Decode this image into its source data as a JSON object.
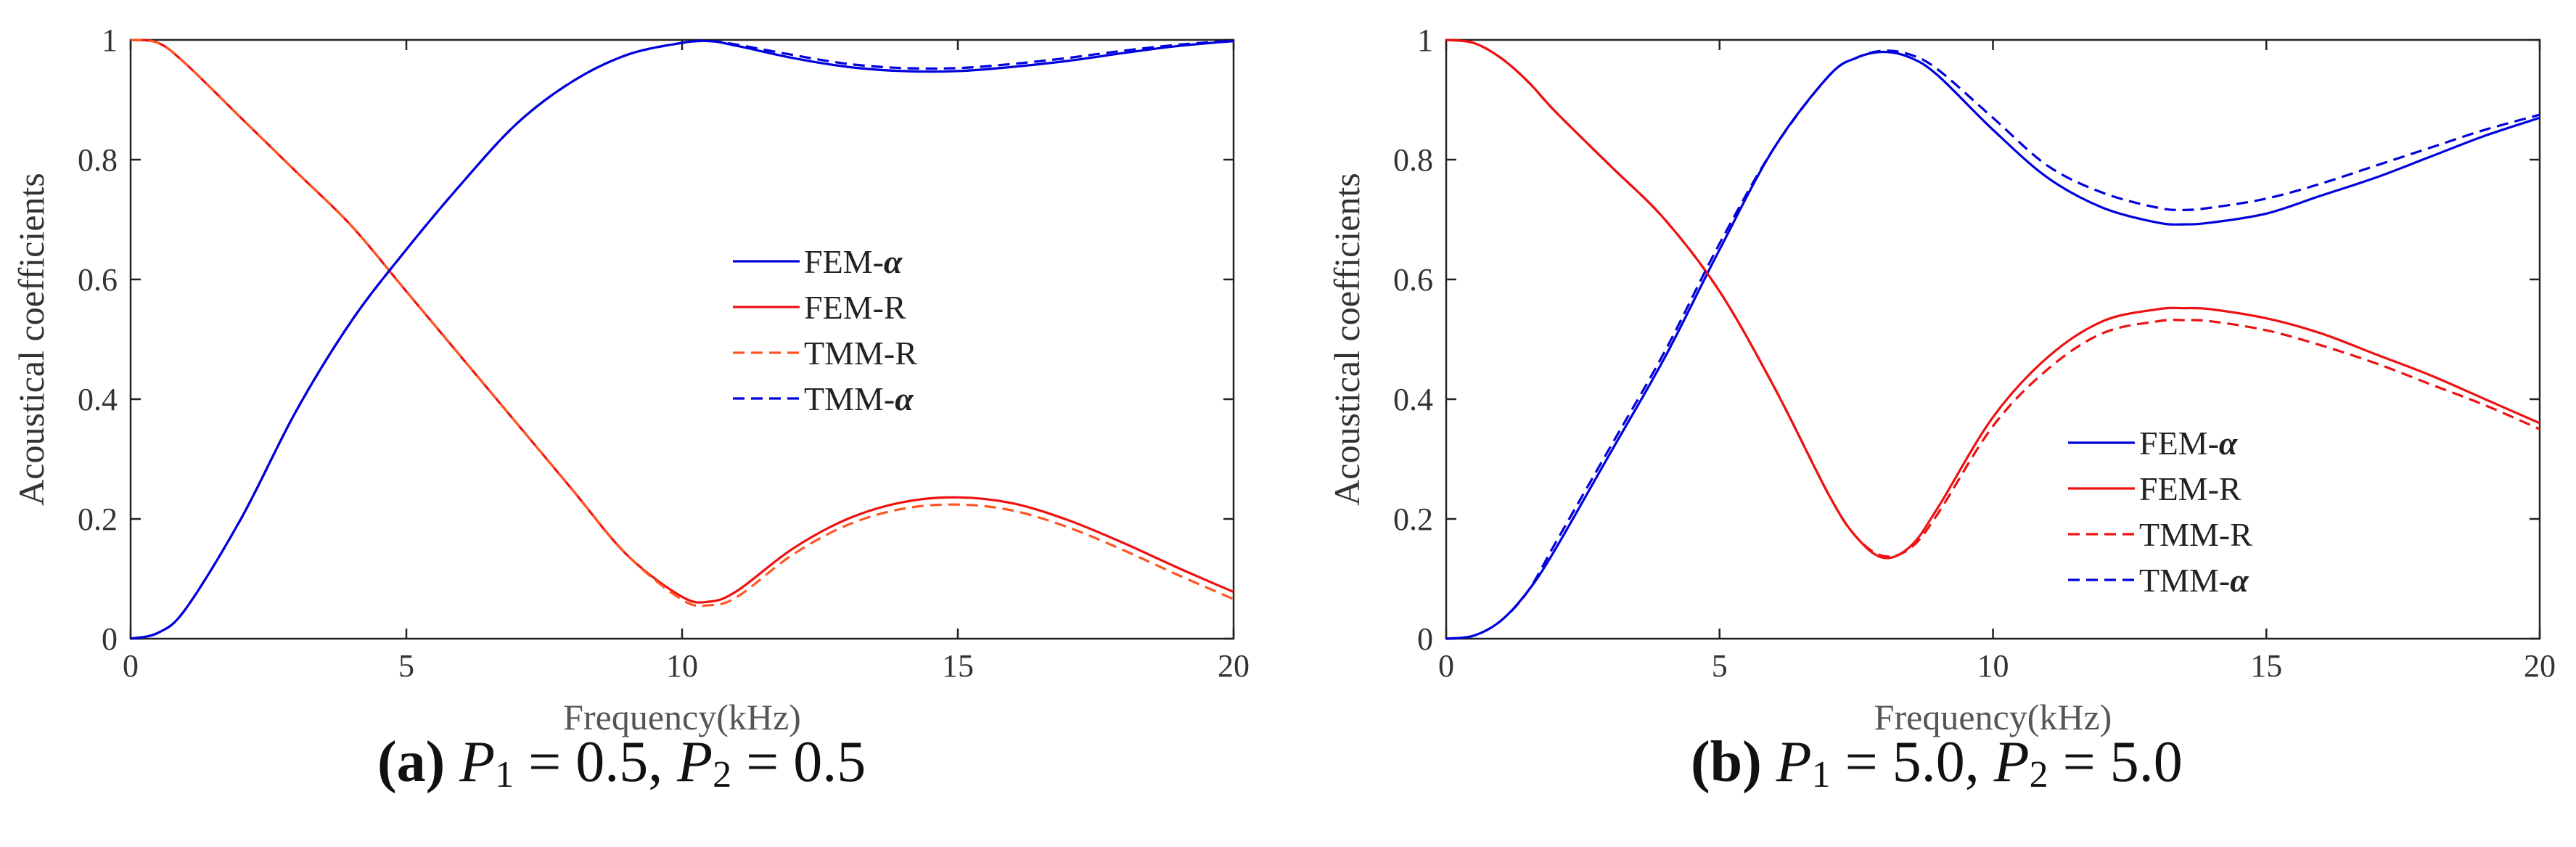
{
  "chart_data": [
    {
      "type": "line",
      "panel": "a",
      "caption": {
        "label": "(a)",
        "p1_var": "P",
        "p1_sub": "1",
        "p1_val": " = 0.5, ",
        "p2_var": "P",
        "p2_sub": "2",
        "p2_val": " = 0.5"
      },
      "xlabel": "Frequency(kHz)",
      "ylabel": "Acoustical coefficients",
      "xlim": [
        0,
        20
      ],
      "ylim": [
        0,
        1
      ],
      "xticks": [
        0,
        5,
        10,
        15,
        20
      ],
      "yticks": [
        0,
        0.2,
        0.4,
        0.6,
        0.8,
        1
      ],
      "legend_position": "center-right",
      "series": [
        {
          "name": "FEM-α",
          "legend_text": "FEM-",
          "legend_symbol": "α",
          "color": "#0000dd",
          "dash": false,
          "x": [
            0,
            0.5,
            1,
            2,
            3,
            4,
            5,
            6,
            7,
            8,
            9,
            10,
            10.5,
            11,
            12,
            13,
            14,
            15,
            16,
            17,
            18,
            19,
            20
          ],
          "y": [
            0,
            0.01,
            0.05,
            0.2,
            0.38,
            0.53,
            0.65,
            0.76,
            0.86,
            0.93,
            0.975,
            0.995,
            0.998,
            0.99,
            0.97,
            0.955,
            0.948,
            0.948,
            0.955,
            0.965,
            0.978,
            0.99,
            0.998
          ]
        },
        {
          "name": "FEM-R",
          "legend_text": "FEM-R",
          "legend_symbol": "",
          "color": "#ee1111",
          "dash": false,
          "x": [
            0,
            0.5,
            1,
            2,
            3,
            4,
            5,
            6,
            7,
            8,
            9,
            10,
            10.5,
            11,
            12,
            13,
            14,
            15,
            16,
            17,
            18,
            19,
            20
          ],
          "y": [
            1,
            0.995,
            0.96,
            0.87,
            0.78,
            0.69,
            0.58,
            0.47,
            0.36,
            0.25,
            0.14,
            0.07,
            0.062,
            0.08,
            0.15,
            0.2,
            0.228,
            0.236,
            0.226,
            0.198,
            0.16,
            0.118,
            0.078
          ]
        },
        {
          "name": "TMM-R",
          "legend_text": "TMM-R",
          "legend_symbol": "",
          "color": "#ff5522",
          "dash": true,
          "x": [
            0,
            0.5,
            1,
            2,
            3,
            4,
            5,
            6,
            7,
            8,
            9,
            10,
            10.5,
            11,
            12,
            13,
            14,
            15,
            16,
            17,
            18,
            19,
            20
          ],
          "y": [
            1,
            0.995,
            0.96,
            0.87,
            0.78,
            0.69,
            0.58,
            0.47,
            0.36,
            0.25,
            0.14,
            0.065,
            0.056,
            0.07,
            0.14,
            0.19,
            0.217,
            0.224,
            0.214,
            0.186,
            0.148,
            0.106,
            0.066
          ]
        },
        {
          "name": "TMM-α",
          "legend_text": "TMM-",
          "legend_symbol": "α",
          "color": "#0000dd",
          "dash": true,
          "x": [
            0,
            0.5,
            1,
            2,
            3,
            4,
            5,
            6,
            7,
            8,
            9,
            10,
            10.5,
            11,
            12,
            13,
            14,
            15,
            16,
            17,
            18,
            19,
            20
          ],
          "y": [
            0,
            0.01,
            0.05,
            0.2,
            0.38,
            0.53,
            0.65,
            0.76,
            0.86,
            0.93,
            0.975,
            0.995,
            0.998,
            0.992,
            0.975,
            0.96,
            0.953,
            0.953,
            0.96,
            0.97,
            0.982,
            0.992,
            0.999
          ]
        }
      ]
    },
    {
      "type": "line",
      "panel": "b",
      "caption": {
        "label": "(b)",
        "p1_var": "P",
        "p1_sub": "1",
        "p1_val": " = 5.0, ",
        "p2_var": "P",
        "p2_sub": "2",
        "p2_val": " = 5.0"
      },
      "xlabel": "Frequency(kHz)",
      "ylabel": "Acoustical coefficients",
      "xlim": [
        0,
        20
      ],
      "ylim": [
        0,
        1
      ],
      "xticks": [
        0,
        5,
        10,
        15,
        20
      ],
      "yticks": [
        0,
        0.2,
        0.4,
        0.6,
        0.8,
        1
      ],
      "legend_position": "lower-right",
      "series": [
        {
          "name": "FEM-α",
          "legend_text": "FEM-",
          "legend_symbol": "α",
          "color": "#0000dd",
          "dash": false,
          "x": [
            0,
            0.5,
            1,
            1.5,
            2,
            3,
            4,
            5,
            6,
            7,
            7.5,
            8,
            8.5,
            9,
            10,
            11,
            12,
            13,
            13.5,
            14,
            15,
            16,
            17,
            18,
            19,
            20
          ],
          "y": [
            0,
            0.005,
            0.03,
            0.08,
            0.15,
            0.31,
            0.47,
            0.65,
            0.82,
            0.94,
            0.97,
            0.98,
            0.97,
            0.94,
            0.85,
            0.77,
            0.72,
            0.695,
            0.692,
            0.695,
            0.71,
            0.74,
            0.77,
            0.805,
            0.84,
            0.87
          ]
        },
        {
          "name": "FEM-R",
          "legend_text": "FEM-R",
          "legend_symbol": "",
          "color": "#ee1111",
          "dash": false,
          "x": [
            0,
            0.5,
            1,
            1.5,
            2,
            3,
            4,
            5,
            6,
            7,
            7.5,
            8,
            8.5,
            9,
            10,
            11,
            12,
            13,
            13.5,
            14,
            15,
            16,
            17,
            18,
            19,
            20
          ],
          "y": [
            1,
            0.995,
            0.97,
            0.93,
            0.88,
            0.79,
            0.7,
            0.58,
            0.42,
            0.24,
            0.17,
            0.135,
            0.155,
            0.22,
            0.37,
            0.47,
            0.53,
            0.55,
            0.552,
            0.55,
            0.535,
            0.51,
            0.475,
            0.44,
            0.4,
            0.36
          ]
        },
        {
          "name": "TMM-R",
          "legend_text": "TMM-R",
          "legend_symbol": "",
          "color": "#ee1111",
          "dash": true,
          "x": [
            0,
            0.5,
            1,
            1.5,
            2,
            3,
            4,
            5,
            6,
            7,
            7.5,
            8,
            8.5,
            9,
            10,
            11,
            12,
            13,
            13.5,
            14,
            15,
            16,
            17,
            18,
            19,
            20
          ],
          "y": [
            1,
            0.995,
            0.97,
            0.93,
            0.88,
            0.79,
            0.7,
            0.58,
            0.42,
            0.24,
            0.17,
            0.138,
            0.152,
            0.21,
            0.355,
            0.45,
            0.51,
            0.53,
            0.532,
            0.53,
            0.515,
            0.49,
            0.46,
            0.425,
            0.39,
            0.35
          ]
        },
        {
          "name": "TMM-α",
          "legend_text": "TMM-",
          "legend_symbol": "α",
          "color": "#0000dd",
          "dash": true,
          "x": [
            0,
            0.5,
            1,
            1.5,
            2,
            3,
            4,
            5,
            6,
            7,
            7.5,
            8,
            8.5,
            9,
            10,
            11,
            12,
            13,
            13.5,
            14,
            15,
            16,
            17,
            18,
            19,
            20
          ],
          "y": [
            0,
            0.005,
            0.03,
            0.08,
            0.16,
            0.32,
            0.48,
            0.66,
            0.82,
            0.94,
            0.97,
            0.982,
            0.975,
            0.95,
            0.87,
            0.79,
            0.745,
            0.72,
            0.716,
            0.72,
            0.735,
            0.76,
            0.79,
            0.82,
            0.85,
            0.875
          ]
        }
      ]
    }
  ]
}
